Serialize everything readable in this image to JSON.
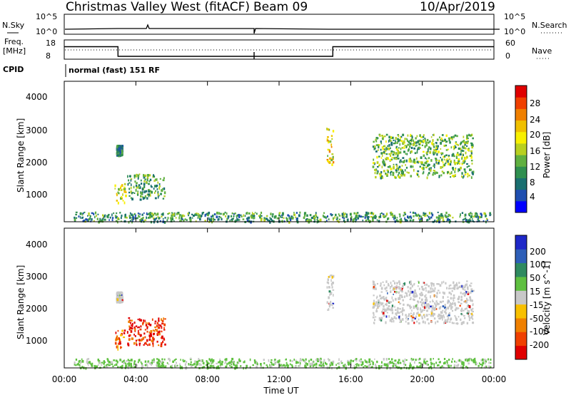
{
  "header": {
    "site": "Christmas Valley West (fitACF)",
    "beam": "Beam 09",
    "date": "10/Apr/2019"
  },
  "side_labels": {
    "nsky": "N.Sky",
    "nsearch": "N.Search",
    "freq_line1": "Freq.",
    "freq_line2": "[MHz]",
    "nave": "Nave",
    "cpid": "CPID"
  },
  "control_program": "normal (fast) 151 RF",
  "noise_panel": {
    "y_ticks": [
      "10^5",
      "10^0"
    ]
  },
  "freq_panel": {
    "left_ticks": [
      "18",
      "8"
    ],
    "right_ticks": [
      "60",
      "0"
    ]
  },
  "axes": {
    "xlabel": "Time UT",
    "x_ticks": [
      "00:00",
      "04:00",
      "08:00",
      "12:00",
      "16:00",
      "20:00",
      "00:00"
    ],
    "ylabel": "Slant Range [km]",
    "y_ticks": [
      "4000",
      "3000",
      "2000",
      "1000"
    ]
  },
  "power_colorbar": {
    "label": "Power [dB]",
    "ticks": [
      "28",
      "24",
      "20",
      "16",
      "12",
      "8",
      "4"
    ],
    "colors": [
      "#0000ff",
      "#1f4fb0",
      "#1a6f70",
      "#2f8f4f",
      "#60b040",
      "#b8d020",
      "#f8f000",
      "#f0c000",
      "#f08000",
      "#f04000",
      "#e00000"
    ]
  },
  "velocity_colorbar": {
    "label": "Velocity [m s^-1]",
    "ticks": [
      "200",
      "100",
      "50",
      "15",
      "-15",
      "-50",
      "-100",
      "-200"
    ],
    "colors": [
      "#1e28c8",
      "#2e5fb8",
      "#2f8a60",
      "#5fc040",
      "#c8c8c8",
      "#f8c000",
      "#f08000",
      "#f04000",
      "#e00000"
    ]
  },
  "chart_data": {
    "type": "heatmap",
    "x_range_hours": [
      0,
      24
    ],
    "y_range_km": [
      180,
      4600
    ],
    "panels": [
      {
        "name": "power",
        "regions": [
          {
            "t0": 2.9,
            "t1": 3.2,
            "r0": 2300,
            "r1": 2600,
            "level": 0.25
          },
          {
            "t0": 2.8,
            "t1": 3.4,
            "r0": 800,
            "r1": 1400,
            "level": 0.55
          },
          {
            "t0": 3.5,
            "t1": 5.6,
            "r0": 900,
            "r1": 1700,
            "level": 0.35
          },
          {
            "t0": 14.6,
            "t1": 15.0,
            "r0": 2000,
            "r1": 3150,
            "level": 0.6
          },
          {
            "t0": 17.2,
            "t1": 22.8,
            "r0": 1600,
            "r1": 2950,
            "level": 0.4
          },
          {
            "t0": 0.5,
            "t1": 23.8,
            "r0": 200,
            "r1": 500,
            "level": 0.3
          }
        ]
      },
      {
        "name": "velocity",
        "regions": [
          {
            "t0": 2.9,
            "t1": 3.2,
            "r0": 2300,
            "r1": 2600,
            "level": 0.5
          },
          {
            "t0": 2.8,
            "t1": 3.4,
            "r0": 800,
            "r1": 1400,
            "level": 0.85
          },
          {
            "t0": 3.5,
            "t1": 5.6,
            "r0": 900,
            "r1": 1800,
            "level": 0.95
          },
          {
            "t0": 14.6,
            "t1": 15.0,
            "r0": 2000,
            "r1": 3150,
            "level": 0.5
          },
          {
            "t0": 17.2,
            "t1": 22.8,
            "r0": 1600,
            "r1": 2950,
            "level": 0.5
          },
          {
            "t0": 0.5,
            "t1": 23.8,
            "r0": 200,
            "r1": 500,
            "level": 0.3
          }
        ]
      }
    ],
    "frequency_steps": [
      {
        "t0": 0.0,
        "t1": 3.0,
        "mhz": 14.5
      },
      {
        "t0": 3.0,
        "t1": 15.0,
        "mhz": 9.5
      },
      {
        "t0": 15.0,
        "t1": 24.0,
        "mhz": 14.5
      }
    ]
  }
}
